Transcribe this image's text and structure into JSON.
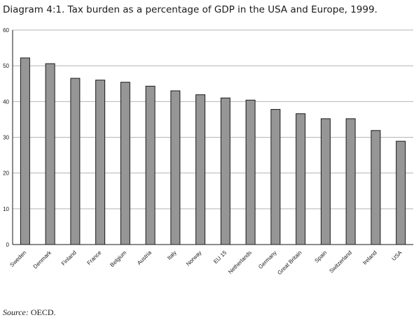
{
  "chart_data": {
    "type": "bar",
    "title": "Diagram 4:1. Tax burden as a percentage of GDP in the USA and Europe, 1999.",
    "xlabel": "",
    "ylabel": "",
    "ylim": [
      0,
      60
    ],
    "yticks": [
      0,
      10,
      20,
      30,
      40,
      50,
      60
    ],
    "grid": true,
    "categories": [
      "Sweden",
      "Denmark",
      "Finland",
      "France",
      "Belgium",
      "Austria",
      "Italy",
      "Norway",
      "EU 15",
      "Netherlands",
      "Germany",
      "Great Britain",
      "Spain",
      "Switzerland",
      "Ireland",
      "USA"
    ],
    "values": [
      52.2,
      50.6,
      46.5,
      46.0,
      45.4,
      44.3,
      43.0,
      41.9,
      41.0,
      40.4,
      37.8,
      36.6,
      35.2,
      35.2,
      31.9,
      28.9
    ],
    "colors": {
      "bar_fill": "#969696",
      "bar_stroke": "#1a1a1a",
      "grid": "#b5b5b5",
      "axis": "#1a1a1a"
    }
  },
  "source": {
    "label": "Source:",
    "text": " OECD."
  }
}
